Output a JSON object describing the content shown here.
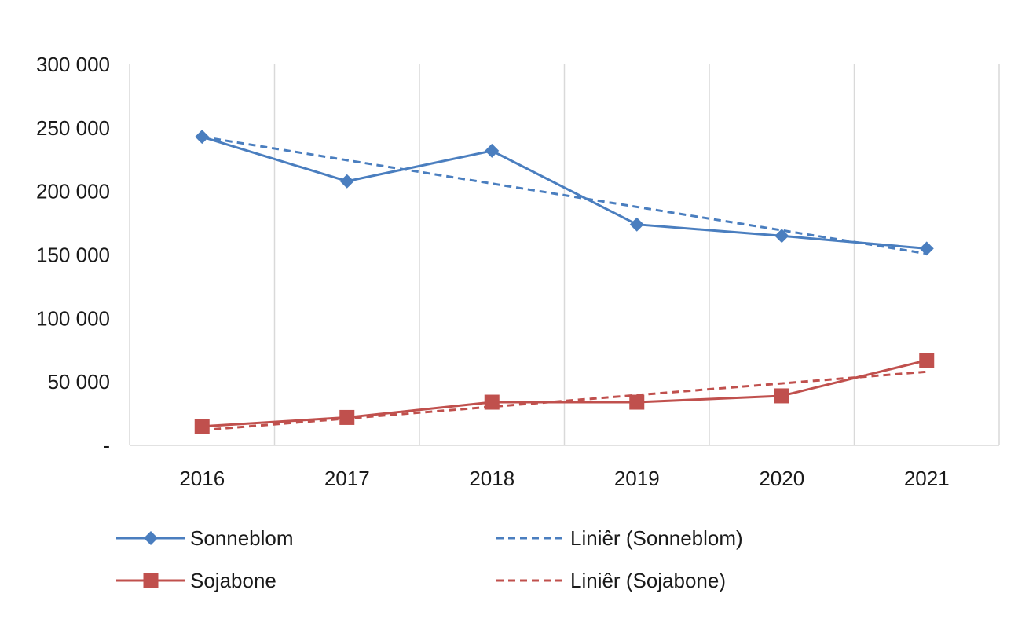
{
  "chart_data": {
    "type": "line",
    "title": "",
    "xlabel": "",
    "ylabel": "",
    "categories": [
      "2016",
      "2017",
      "2018",
      "2019",
      "2020",
      "2021"
    ],
    "ylim": [
      0,
      300000
    ],
    "yticks": [
      {
        "value": 0,
        "label": "-"
      },
      {
        "value": 50000,
        "label": "50 000"
      },
      {
        "value": 100000,
        "label": "100 000"
      },
      {
        "value": 150000,
        "label": "150 000"
      },
      {
        "value": 200000,
        "label": "200 000"
      },
      {
        "value": 250000,
        "label": "250 000"
      },
      {
        "value": 300000,
        "label": "300 000"
      }
    ],
    "grid": {
      "vertical": true,
      "horizontal": false
    },
    "legend_position": "bottom",
    "series": [
      {
        "name": "Sonneblom",
        "color": "#4a7ebf",
        "marker": "diamond",
        "values": [
          243000,
          208000,
          232000,
          174000,
          165000,
          155000
        ]
      },
      {
        "name": "Sojabone",
        "color": "#c0504d",
        "marker": "square",
        "values": [
          15000,
          22000,
          34000,
          34000,
          39000,
          67000
        ]
      }
    ],
    "trendlines": [
      {
        "name": "Liniêr (Sonneblom)",
        "color": "#4a7ebf",
        "style": "dashed",
        "start": 243000,
        "end": 151000
      },
      {
        "name": "Liniêr (Sojabone)",
        "color": "#c0504d",
        "style": "dashed",
        "start": 12000,
        "end": 58000
      }
    ]
  }
}
